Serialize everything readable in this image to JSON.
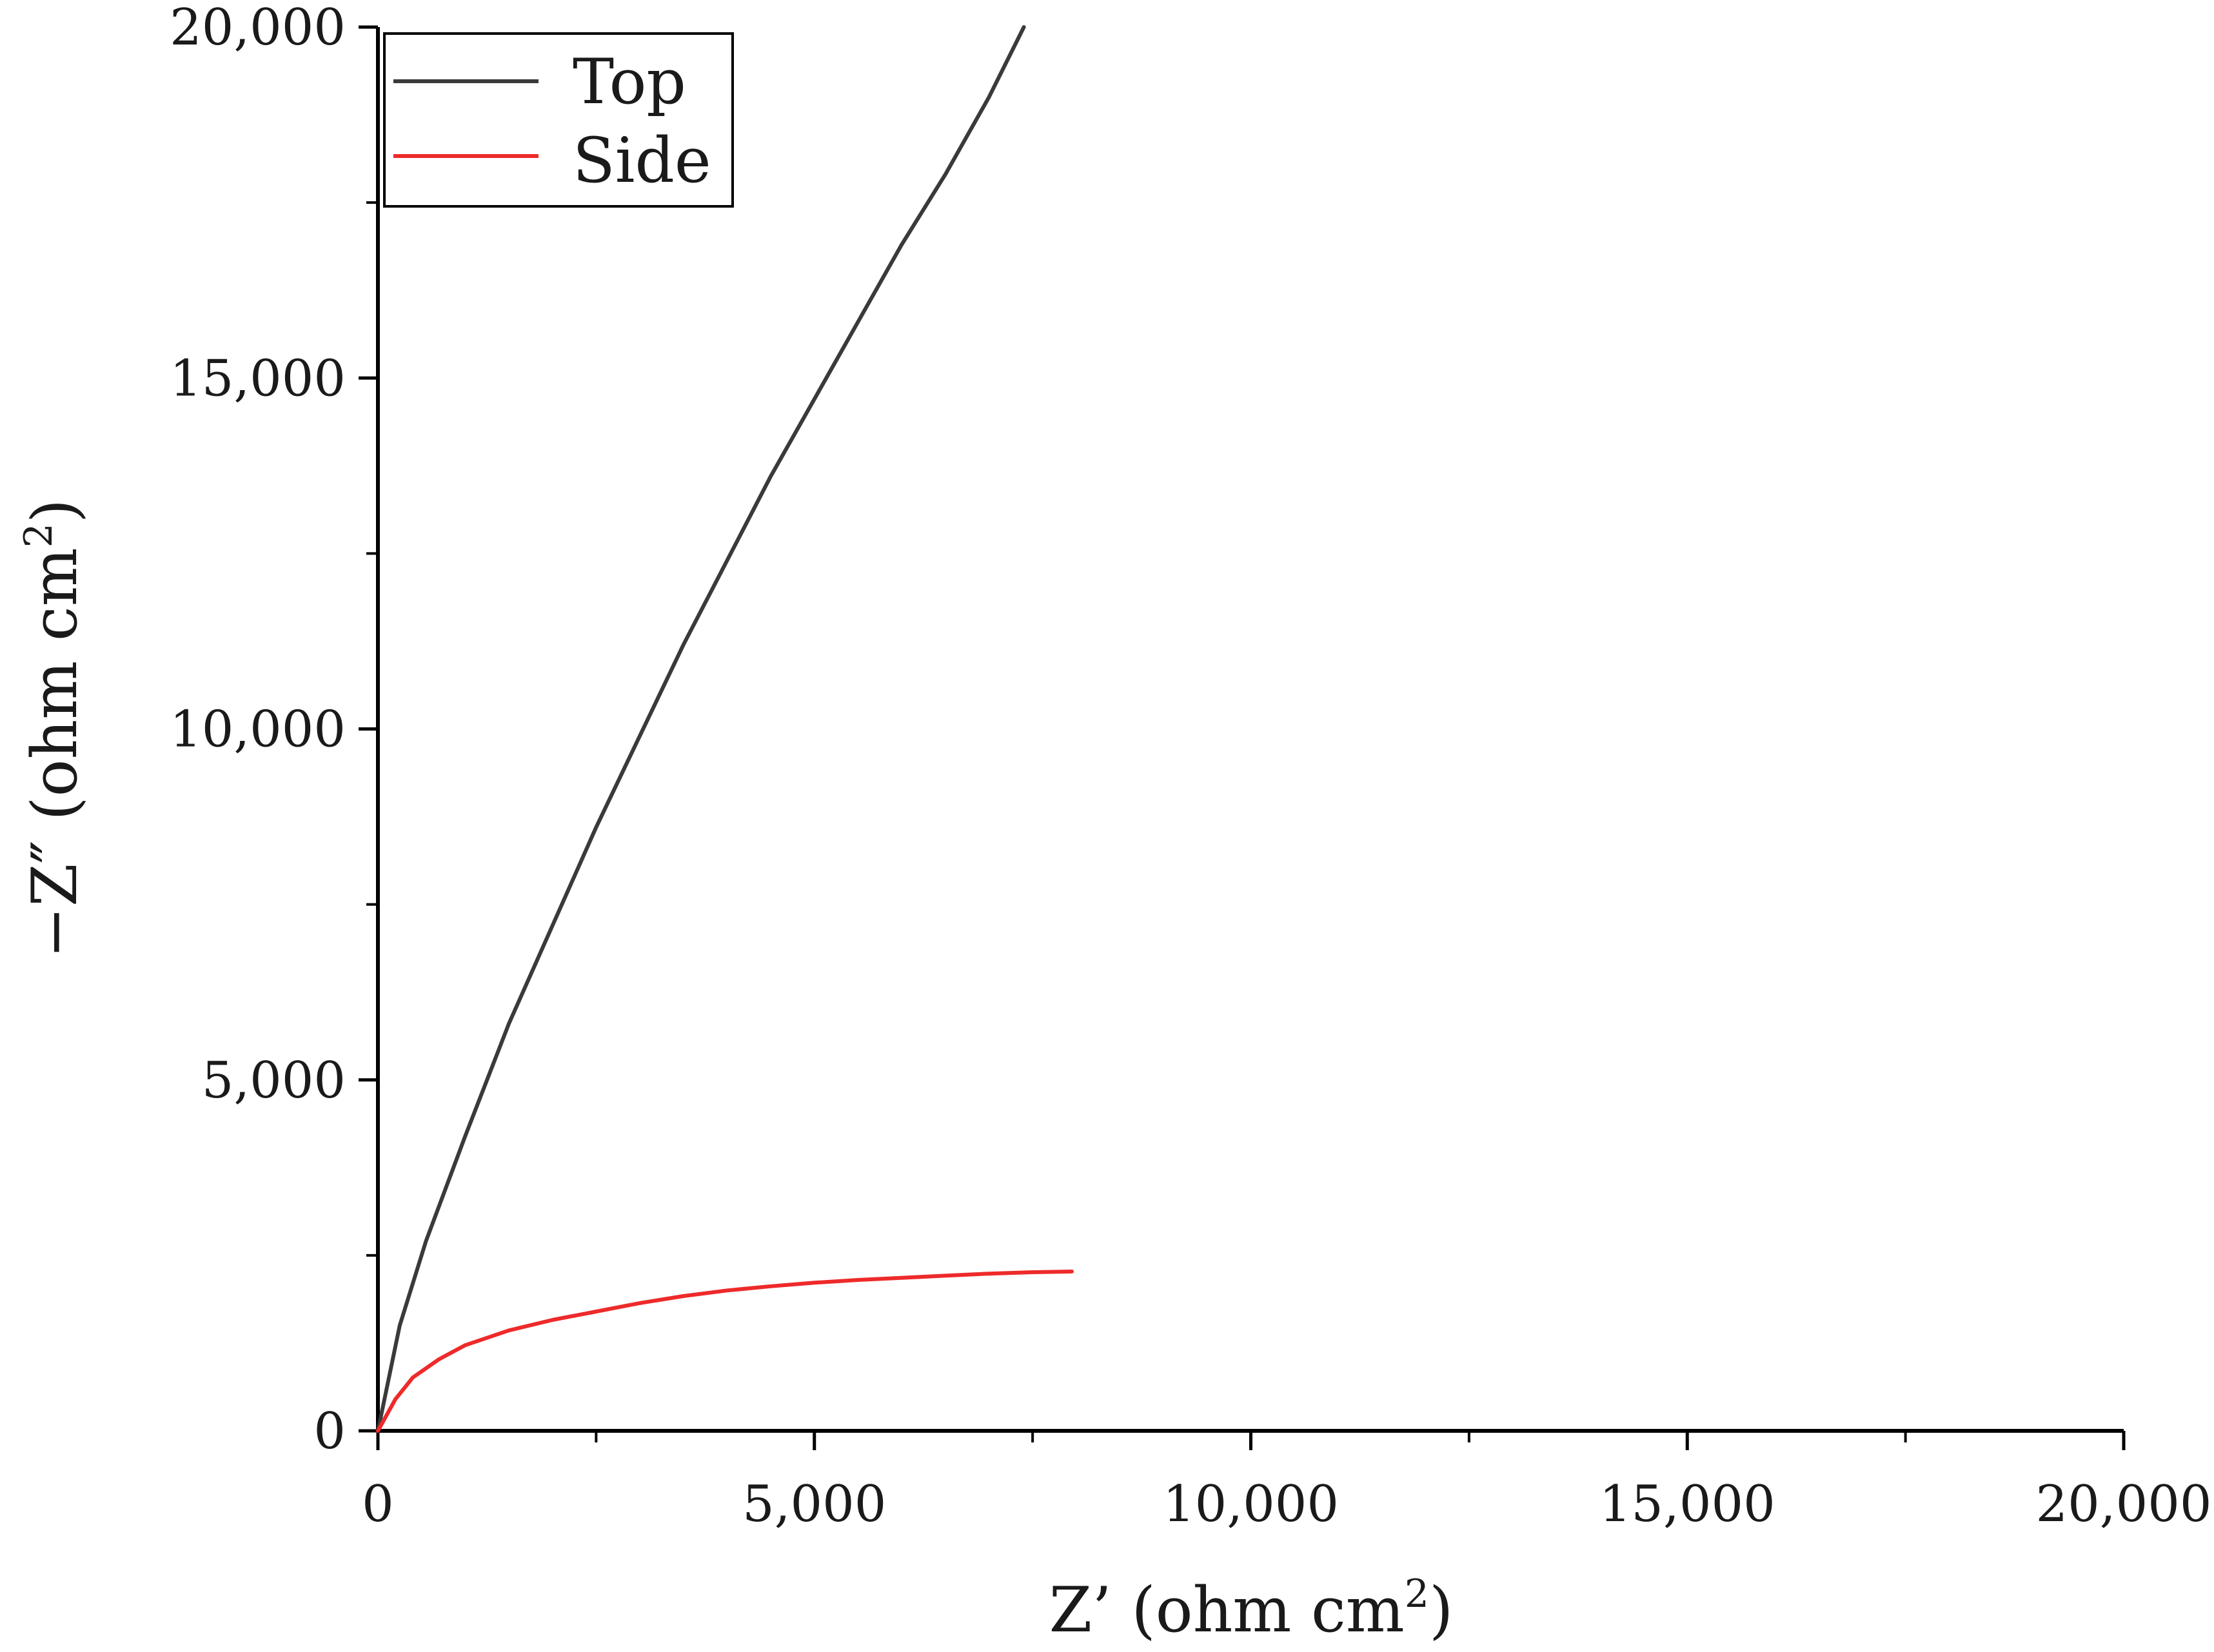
{
  "chart_data": {
    "type": "line",
    "xlabel": "Z’ (ohm cm",
    "xlabel_sup": "2",
    "xlabel_close": ")",
    "ylabel": "−Z″ (ohm cm",
    "ylabel_sup": "2",
    "ylabel_close": ")",
    "xlim": [
      0,
      20000
    ],
    "ylim": [
      0,
      20000
    ],
    "x_ticks": [
      0,
      5000,
      10000,
      15000,
      20000
    ],
    "x_tick_labels": [
      "0",
      "5,000",
      "10,000",
      "15,000",
      "20,000"
    ],
    "y_ticks": [
      0,
      5000,
      10000,
      15000,
      20000
    ],
    "y_tick_labels": [
      "0",
      "5,000",
      "10,000",
      "15,000",
      "20,000"
    ],
    "grid": false,
    "legend_position": "top-left",
    "series": [
      {
        "name": "Top",
        "color": "#3a3a3a",
        "x": [
          0,
          250,
          550,
          1000,
          1500,
          2000,
          2500,
          3000,
          3500,
          4000,
          4500,
          5000,
          5500,
          6000,
          6500,
          7000,
          7400
        ],
        "y": [
          0,
          1500,
          2700,
          4200,
          5800,
          7200,
          8600,
          9900,
          11200,
          12400,
          13600,
          14700,
          15800,
          16900,
          17900,
          19000,
          20000
        ]
      },
      {
        "name": "Side",
        "color": "#ee2a2a",
        "x": [
          0,
          200,
          400,
          700,
          1000,
          1500,
          2000,
          2500,
          3000,
          3500,
          4000,
          4500,
          5000,
          5500,
          6000,
          6500,
          7000,
          7500,
          7950
        ],
        "y": [
          0,
          450,
          760,
          1020,
          1220,
          1430,
          1580,
          1700,
          1820,
          1920,
          2000,
          2060,
          2110,
          2150,
          2180,
          2210,
          2240,
          2260,
          2270
        ]
      }
    ]
  }
}
